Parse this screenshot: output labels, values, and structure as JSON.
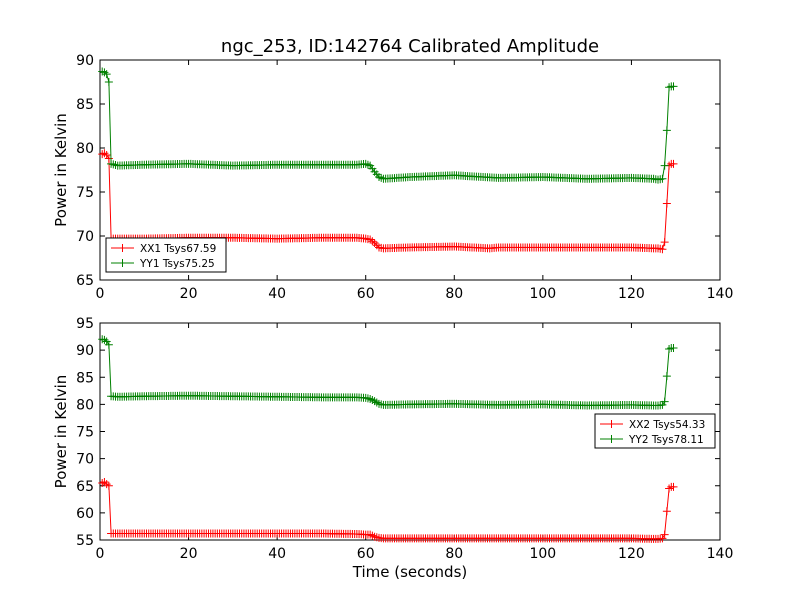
{
  "title": "ngc_253, ID:142764 Calibrated Amplitude",
  "colors": {
    "xx": "#ff0000",
    "yy": "#008000"
  },
  "chart_data": [
    {
      "type": "line",
      "title": "ngc_253, ID:142764 Calibrated Amplitude",
      "xlabel": "",
      "ylabel": "Power in Kelvin",
      "xlim": [
        0,
        140
      ],
      "ylim": [
        65,
        90
      ],
      "xticks": [
        0,
        20,
        40,
        60,
        80,
        100,
        120,
        140
      ],
      "yticks": [
        65,
        70,
        75,
        80,
        85,
        90
      ],
      "legend": "lower-left",
      "series": [
        {
          "name": "XX1 Tsys67.59",
          "color": "#ff0000",
          "x": [
            0.5,
            1,
            1.5,
            2,
            2.5,
            4,
            10,
            20,
            30,
            40,
            50,
            58,
            60,
            61,
            62,
            63,
            64,
            70,
            80,
            88,
            90,
            100,
            110,
            120,
            125,
            126,
            127,
            127.5,
            128,
            128.5,
            129,
            129.5
          ],
          "y": [
            79.3,
            79.4,
            79.2,
            78.8,
            69.7,
            69.7,
            69.7,
            69.8,
            69.8,
            69.7,
            69.8,
            69.8,
            69.7,
            69.6,
            69.2,
            68.7,
            68.6,
            68.7,
            68.8,
            68.6,
            68.7,
            68.7,
            68.7,
            68.7,
            68.6,
            68.6,
            68.5,
            69.3,
            73.7,
            78.0,
            78.2,
            78.2
          ]
        },
        {
          "name": "YY1 Tsys75.25",
          "color": "#008000",
          "x": [
            0.5,
            1,
            1.5,
            2,
            2.5,
            4,
            10,
            20,
            30,
            40,
            50,
            58,
            60,
            61,
            62,
            63,
            64,
            70,
            80,
            90,
            100,
            110,
            120,
            125,
            126,
            127,
            127.5,
            128,
            128.5,
            129,
            129.5
          ],
          "y": [
            88.7,
            88.6,
            88.4,
            87.5,
            78.2,
            78.0,
            78.1,
            78.2,
            78.0,
            78.1,
            78.1,
            78.1,
            78.2,
            78.0,
            77.3,
            76.7,
            76.5,
            76.7,
            76.9,
            76.6,
            76.7,
            76.5,
            76.6,
            76.5,
            76.4,
            76.5,
            78.0,
            82.0,
            86.9,
            87.0,
            87.0
          ]
        }
      ]
    },
    {
      "type": "line",
      "title": "",
      "xlabel": "Time (seconds)",
      "ylabel": "Power in Kelvin",
      "xlim": [
        0,
        140
      ],
      "ylim": [
        55,
        95
      ],
      "xticks": [
        0,
        20,
        40,
        60,
        80,
        100,
        120,
        140
      ],
      "yticks": [
        55,
        60,
        65,
        70,
        75,
        80,
        85,
        90,
        95
      ],
      "legend": "right",
      "series": [
        {
          "name": "XX2 Tsys54.33",
          "color": "#ff0000",
          "x": [
            0.5,
            1,
            1.5,
            2,
            2.5,
            4,
            10,
            20,
            30,
            40,
            50,
            58,
            60,
            61,
            62,
            63,
            64,
            70,
            80,
            90,
            100,
            110,
            120,
            125,
            126,
            127,
            127.5,
            128,
            128.5,
            129,
            129.5
          ],
          "y": [
            65.5,
            65.7,
            65.3,
            65.0,
            56.2,
            56.2,
            56.2,
            56.2,
            56.2,
            56.2,
            56.2,
            56.1,
            56.0,
            56.0,
            55.6,
            55.4,
            55.3,
            55.3,
            55.3,
            55.3,
            55.3,
            55.3,
            55.3,
            55.2,
            55.2,
            55.3,
            56.0,
            60.3,
            64.5,
            64.8,
            64.8
          ]
        },
        {
          "name": "YY2 Tsys78.11",
          "color": "#008000",
          "x": [
            0.5,
            1,
            1.5,
            2,
            2.5,
            4,
            10,
            20,
            30,
            40,
            50,
            58,
            60,
            61,
            62,
            63,
            64,
            70,
            80,
            90,
            100,
            110,
            120,
            125,
            126,
            127,
            127.5,
            128,
            128.5,
            129,
            129.5
          ],
          "y": [
            92.0,
            91.9,
            91.6,
            91.0,
            81.5,
            81.4,
            81.5,
            81.6,
            81.5,
            81.4,
            81.3,
            81.3,
            81.2,
            81.0,
            80.6,
            80.1,
            79.9,
            80.0,
            80.1,
            79.9,
            80.0,
            79.8,
            79.9,
            79.8,
            79.8,
            79.9,
            80.5,
            85.2,
            90.2,
            90.4,
            90.4
          ]
        }
      ]
    }
  ]
}
